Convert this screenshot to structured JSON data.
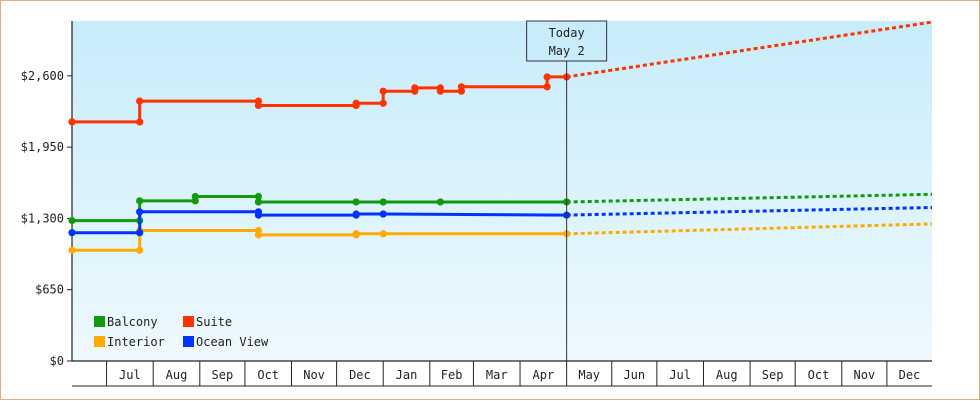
{
  "chart_data": {
    "type": "line",
    "title": "",
    "xlabel": "",
    "ylabel": "",
    "ylim": [
      0,
      3100
    ],
    "yticks": [
      {
        "value": 0,
        "label": "$0"
      },
      {
        "value": 650,
        "label": "$650"
      },
      {
        "value": 1300,
        "label": "$1,300"
      },
      {
        "value": 1950,
        "label": "$1,950"
      },
      {
        "value": 2600,
        "label": "$2,600"
      }
    ],
    "x_range": [
      "2023-06-08",
      "2024-12-31"
    ],
    "months": [
      {
        "label": "Jul",
        "start": "2023-07-01",
        "end": "2023-08-01"
      },
      {
        "label": "Aug",
        "start": "2023-08-01",
        "end": "2023-09-01"
      },
      {
        "label": "Sep",
        "start": "2023-09-01",
        "end": "2023-10-01"
      },
      {
        "label": "Oct",
        "start": "2023-10-01",
        "end": "2023-11-01"
      },
      {
        "label": "Nov",
        "start": "2023-11-01",
        "end": "2023-12-01"
      },
      {
        "label": "Dec",
        "start": "2023-12-01",
        "end": "2024-01-01"
      },
      {
        "label": "Jan",
        "start": "2024-01-01",
        "end": "2024-02-01"
      },
      {
        "label": "Feb",
        "start": "2024-02-01",
        "end": "2024-03-01"
      },
      {
        "label": "Mar",
        "start": "2024-03-01",
        "end": "2024-04-01"
      },
      {
        "label": "Apr",
        "start": "2024-04-01",
        "end": "2024-05-02"
      },
      {
        "label": "May",
        "start": "2024-05-02",
        "end": "2024-06-01"
      },
      {
        "label": "Jun",
        "start": "2024-06-01",
        "end": "2024-07-01"
      },
      {
        "label": "Jul",
        "start": "2024-07-01",
        "end": "2024-08-01"
      },
      {
        "label": "Aug",
        "start": "2024-08-01",
        "end": "2024-09-01"
      },
      {
        "label": "Sep",
        "start": "2024-09-01",
        "end": "2024-10-01"
      },
      {
        "label": "Oct",
        "start": "2024-10-01",
        "end": "2024-11-01"
      },
      {
        "label": "Nov",
        "start": "2024-11-01",
        "end": "2024-12-01"
      },
      {
        "label": "Dec",
        "start": "2024-12-01",
        "end": "2024-12-31"
      }
    ],
    "today": {
      "line1": "Today",
      "line2": "May 2",
      "date": "2024-05-02"
    },
    "legend": {
      "position": "bottom-left"
    },
    "series": [
      {
        "name": "Balcony",
        "color": "#119911",
        "history": [
          [
            "2023-06-08",
            1280
          ],
          [
            "2023-07-23",
            1280
          ],
          [
            "2023-07-23",
            1460
          ],
          [
            "2023-08-29",
            1460
          ],
          [
            "2023-08-29",
            1500
          ],
          [
            "2023-10-10",
            1500
          ],
          [
            "2023-10-10",
            1450
          ],
          [
            "2023-12-14",
            1450
          ],
          [
            "2024-01-01",
            1450
          ],
          [
            "2024-02-08",
            1450
          ],
          [
            "2024-05-02",
            1450
          ]
        ],
        "markers": [
          [
            "2023-06-08",
            1280
          ],
          [
            "2023-07-23",
            1280
          ],
          [
            "2023-07-23",
            1460
          ],
          [
            "2023-08-29",
            1460
          ],
          [
            "2023-08-29",
            1500
          ],
          [
            "2023-10-10",
            1500
          ],
          [
            "2023-10-10",
            1450
          ],
          [
            "2023-12-14",
            1450
          ],
          [
            "2024-01-01",
            1450
          ],
          [
            "2024-02-08",
            1450
          ],
          [
            "2024-05-02",
            1450
          ]
        ],
        "forecast": [
          [
            "2024-05-02",
            1450
          ],
          [
            "2024-12-31",
            1520
          ]
        ]
      },
      {
        "name": "Suite",
        "color": "#ff3300",
        "history": [
          [
            "2023-06-08",
            2180
          ],
          [
            "2023-07-23",
            2180
          ],
          [
            "2023-07-23",
            2370
          ],
          [
            "2023-10-10",
            2370
          ],
          [
            "2023-10-10",
            2330
          ],
          [
            "2023-12-14",
            2330
          ],
          [
            "2023-12-14",
            2350
          ],
          [
            "2024-01-01",
            2350
          ],
          [
            "2024-01-01",
            2460
          ],
          [
            "2024-01-22",
            2460
          ],
          [
            "2024-01-22",
            2490
          ],
          [
            "2024-02-08",
            2490
          ],
          [
            "2024-02-08",
            2460
          ],
          [
            "2024-02-22",
            2460
          ],
          [
            "2024-02-22",
            2500
          ],
          [
            "2024-04-19",
            2500
          ],
          [
            "2024-04-19",
            2590
          ],
          [
            "2024-05-02",
            2590
          ]
        ],
        "markers": [
          [
            "2023-06-08",
            2180
          ],
          [
            "2023-07-23",
            2180
          ],
          [
            "2023-07-23",
            2370
          ],
          [
            "2023-10-10",
            2370
          ],
          [
            "2023-10-10",
            2330
          ],
          [
            "2023-12-14",
            2330
          ],
          [
            "2023-12-14",
            2350
          ],
          [
            "2024-01-01",
            2350
          ],
          [
            "2024-01-01",
            2460
          ],
          [
            "2024-01-22",
            2460
          ],
          [
            "2024-01-22",
            2490
          ],
          [
            "2024-02-08",
            2490
          ],
          [
            "2024-02-08",
            2460
          ],
          [
            "2024-02-22",
            2460
          ],
          [
            "2024-02-22",
            2500
          ],
          [
            "2024-04-19",
            2500
          ],
          [
            "2024-04-19",
            2590
          ],
          [
            "2024-05-02",
            2590
          ]
        ],
        "forecast": [
          [
            "2024-05-02",
            2590
          ],
          [
            "2024-12-31",
            3090
          ]
        ]
      },
      {
        "name": "Interior",
        "color": "#ffaa00",
        "history": [
          [
            "2023-06-08",
            1010
          ],
          [
            "2023-07-23",
            1010
          ],
          [
            "2023-07-23",
            1190
          ],
          [
            "2023-10-10",
            1190
          ],
          [
            "2023-10-10",
            1150
          ],
          [
            "2023-12-14",
            1150
          ],
          [
            "2023-12-14",
            1160
          ],
          [
            "2024-01-01",
            1160
          ],
          [
            "2024-05-02",
            1160
          ]
        ],
        "markers": [
          [
            "2023-06-08",
            1010
          ],
          [
            "2023-07-23",
            1010
          ],
          [
            "2023-07-23",
            1190
          ],
          [
            "2023-10-10",
            1190
          ],
          [
            "2023-10-10",
            1150
          ],
          [
            "2023-12-14",
            1150
          ],
          [
            "2023-12-14",
            1160
          ],
          [
            "2024-01-01",
            1160
          ],
          [
            "2024-05-02",
            1160
          ]
        ],
        "forecast": [
          [
            "2024-05-02",
            1160
          ],
          [
            "2024-12-31",
            1250
          ]
        ]
      },
      {
        "name": "Ocean View",
        "color": "#0033ff",
        "history": [
          [
            "2023-06-08",
            1170
          ],
          [
            "2023-07-23",
            1170
          ],
          [
            "2023-07-23",
            1360
          ],
          [
            "2023-10-10",
            1360
          ],
          [
            "2023-10-10",
            1330
          ],
          [
            "2023-12-14",
            1330
          ],
          [
            "2023-12-14",
            1340
          ],
          [
            "2024-01-01",
            1340
          ],
          [
            "2024-05-02",
            1330
          ]
        ],
        "markers": [
          [
            "2023-06-08",
            1170
          ],
          [
            "2023-07-23",
            1170
          ],
          [
            "2023-07-23",
            1360
          ],
          [
            "2023-10-10",
            1360
          ],
          [
            "2023-10-10",
            1330
          ],
          [
            "2023-12-14",
            1330
          ],
          [
            "2023-12-14",
            1340
          ],
          [
            "2024-01-01",
            1340
          ],
          [
            "2024-05-02",
            1330
          ]
        ],
        "forecast": [
          [
            "2024-05-02",
            1330
          ],
          [
            "2024-12-31",
            1400
          ]
        ]
      }
    ]
  }
}
